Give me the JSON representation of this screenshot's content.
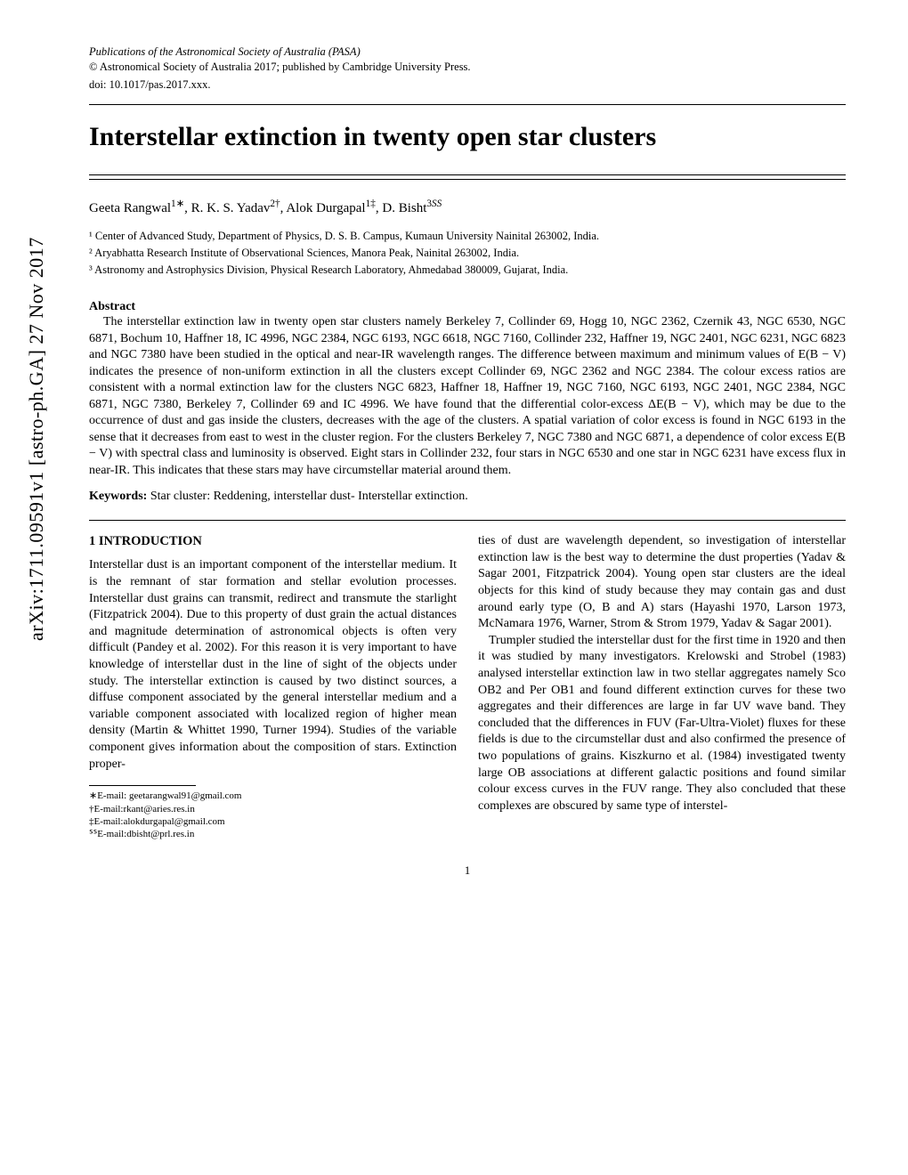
{
  "arxiv_stamp": "arXiv:1711.09591v1  [astro-ph.GA]  27 Nov 2017",
  "journal": {
    "name_italic": "Publications of the Astronomical Society of Australia",
    "name_abbrev": " (PASA)",
    "copyright": "© Astronomical Society of Australia 2017; published by Cambridge University Press.",
    "doi": "doi: 10.1017/pas.2017.xxx."
  },
  "title": "Interstellar extinction in twenty open star clusters",
  "authors_html": "Geeta Rangwal<sup>1∗</sup>, R. K. S. Yadav<sup>2†</sup>, Alok Durgapal<sup>1‡</sup>, D. Bisht<sup>3<i>SS</i></sup>",
  "affiliations": [
    "¹ Center of Advanced Study, Department of Physics, D. S. B. Campus, Kumaun University Nainital 263002, India.",
    "² Aryabhatta Research Institute of Observational Sciences, Manora Peak, Nainital 263002, India.",
    "³ Astronomy and Astrophysics Division, Physical Research Laboratory, Ahmedabad 380009, Gujarat, India."
  ],
  "abstract": {
    "label": "Abstract",
    "text": "The interstellar extinction law in twenty open star clusters namely Berkeley 7, Collinder 69, Hogg 10, NGC 2362, Czernik 43, NGC 6530, NGC 6871, Bochum 10, Haffner 18, IC 4996, NGC 2384, NGC 6193, NGC 6618, NGC 7160, Collinder 232, Haffner 19, NGC 2401, NGC 6231, NGC 6823 and NGC 7380 have been studied in the optical and near-IR wavelength ranges. The difference between maximum and minimum values of E(B − V) indicates the presence of non-uniform extinction in all the clusters except Collinder 69, NGC 2362 and NGC 2384. The colour excess ratios are consistent with a normal extinction law for the clusters NGC 6823, Haffner 18, Haffner 19, NGC 7160, NGC 6193, NGC 2401, NGC 2384, NGC 6871, NGC 7380, Berkeley 7, Collinder 69 and IC 4996. We have found that the differential color-excess ΔE(B − V), which may be due to the occurrence of dust and gas inside the clusters, decreases with the age of the clusters. A spatial variation of color excess is found in NGC 6193 in the sense that it decreases from east to west in the cluster region. For the clusters Berkeley 7, NGC 7380 and NGC 6871, a dependence of color excess E(B − V) with spectral class and luminosity is observed. Eight stars in Collinder 232, four stars in NGC 6530 and one star in NGC 6231 have excess flux in near-IR. This indicates that these stars may have circumstellar material around them."
  },
  "keywords": {
    "label": "Keywords:",
    "text": " Star cluster: Reddening, interstellar dust- Interstellar extinction."
  },
  "section1": {
    "heading": "1 INTRODUCTION"
  },
  "column_left": {
    "p1": "Interstellar dust is an important component of the interstellar medium. It is the remnant of star formation and stellar evolution processes. Interstellar dust grains can transmit, redirect and transmute the starlight (Fitzpatrick 2004). Due to this property of dust grain the actual distances and magnitude determination of astronomical objects is often very difficult (Pandey et al. 2002). For this reason it is very important to have knowledge of interstellar dust in the line of sight of the objects under study. The interstellar extinction is caused by two distinct sources, a diffuse component associated by the general interstellar medium and a variable component associated with localized region of higher mean density (Martin & Whittet 1990, Turner 1994). Studies of the variable component gives information about the composition of stars. Extinction proper-"
  },
  "column_right": {
    "p1": "ties of dust are wavelength dependent, so investigation of interstellar extinction law is the best way to determine the dust properties (Yadav & Sagar 2001, Fitzpatrick 2004). Young open star clusters are the ideal objects for this kind of study because they may contain gas and dust around early type (O, B and A) stars (Hayashi 1970, Larson 1973, McNamara 1976, Warner, Strom & Strom 1979, Yadav & Sagar 2001).",
    "p2": "Trumpler studied the interstellar dust for the first time in 1920 and then it was studied by many investigators. Krelowski and Strobel (1983) analysed interstellar extinction law in two stellar aggregates namely Sco OB2 and Per OB1 and found different extinction curves for these two aggregates and their differences are large in far UV wave band. They concluded that the differences in FUV (Far-Ultra-Violet) fluxes for these fields is due to the circumstellar dust and also confirmed the presence of two populations of grains. Kiszkurno et al. (1984) investigated twenty large OB associations at different galactic positions and found similar colour excess curves in the FUV range. They also concluded that these complexes are obscured by same type of interstel-"
  },
  "footnotes": [
    "∗E-mail: geetarangwal91@gmail.com",
    "†E-mail:rkant@aries.res.in",
    "‡E-mail:alokdurgapal@gmail.com",
    "ᔆᔆE-mail:dbisht@prl.res.in"
  ],
  "page_number": "1"
}
